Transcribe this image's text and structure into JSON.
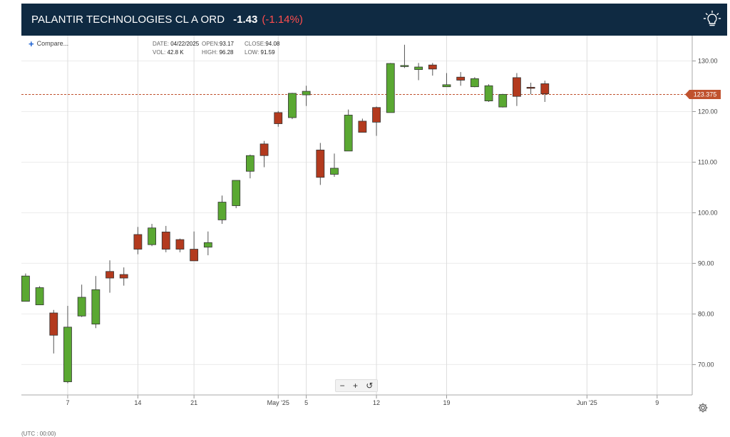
{
  "header": {
    "title": "PALANTIR TECHNOLOGIES CL A ORD",
    "change": "-1.43",
    "change_pct": "(-1.14%)"
  },
  "toolbar": {
    "compare_label": "Compare...",
    "zoom_out": "−",
    "zoom_in": "+",
    "reset": "↺"
  },
  "ohlc": {
    "date_label": "DATE:",
    "date": "04/22/2025",
    "vol_label": "VOL:",
    "vol": "42.8 K",
    "open_label": "OPEN:",
    "open": "93.17",
    "high_label": "HIGH:",
    "high": "96.28",
    "close_label": "CLOSE:",
    "close": "94.08",
    "low_label": "LOW:",
    "low": "91.59"
  },
  "footer": {
    "timezone": "(UTC : 00:00)"
  },
  "icons": {
    "lightbulb": "lightbulb-icon",
    "settings": "gear-icon"
  },
  "colors": {
    "up": "#5aa832",
    "down": "#b33a1e",
    "header_bg": "#0f2a42",
    "price_line": "#c0522e"
  },
  "chart_data": {
    "type": "candlestick",
    "ylim": [
      64,
      135
    ],
    "y_ticks": [
      70,
      80,
      90,
      100,
      110,
      120,
      130
    ],
    "y_tick_labels": [
      "70.00",
      "80.00",
      "90.00",
      "100.00",
      "110.00",
      "120.00",
      "130.00"
    ],
    "x_labels": [
      {
        "label": "7",
        "index": 3
      },
      {
        "label": "14",
        "index": 8
      },
      {
        "label": "21",
        "index": 12
      },
      {
        "label": "May '25",
        "index": 18
      },
      {
        "label": "5",
        "index": 20
      },
      {
        "label": "12",
        "index": 25
      },
      {
        "label": "19",
        "index": 30
      },
      {
        "label": "Jun '25",
        "index": 40
      },
      {
        "label": "9",
        "index": 45
      }
    ],
    "x_index_range": [
      -0.3,
      47.5
    ],
    "current_price": 123.375,
    "current_price_label": "123.375",
    "candles": [
      {
        "i": 0,
        "o": 82.5,
        "h": 88.0,
        "l": 82.5,
        "c": 87.5
      },
      {
        "i": 1,
        "o": 81.8,
        "h": 85.5,
        "l": 81.8,
        "c": 85.2
      },
      {
        "i": 2,
        "o": 80.2,
        "h": 80.8,
        "l": 72.2,
        "c": 75.8
      },
      {
        "i": 3,
        "o": 66.6,
        "h": 81.6,
        "l": 66.3,
        "c": 77.4
      },
      {
        "i": 4,
        "o": 79.6,
        "h": 85.8,
        "l": 79.4,
        "c": 83.3
      },
      {
        "i": 5,
        "o": 78.0,
        "h": 87.5,
        "l": 77.2,
        "c": 84.8
      },
      {
        "i": 6,
        "o": 88.4,
        "h": 90.6,
        "l": 84.2,
        "c": 87.1
      },
      {
        "i": 7,
        "o": 87.8,
        "h": 89.2,
        "l": 85.6,
        "c": 87.1
      },
      {
        "i": 8,
        "o": 95.7,
        "h": 97.2,
        "l": 91.8,
        "c": 92.8
      },
      {
        "i": 9,
        "o": 93.7,
        "h": 97.8,
        "l": 93.4,
        "c": 97.0
      },
      {
        "i": 10,
        "o": 96.2,
        "h": 97.4,
        "l": 92.2,
        "c": 92.8
      },
      {
        "i": 11,
        "o": 94.7,
        "h": 94.9,
        "l": 92.2,
        "c": 92.8
      },
      {
        "i": 12,
        "o": 92.8,
        "h": 96.3,
        "l": 90.5,
        "c": 90.5
      },
      {
        "i": 13,
        "o": 93.2,
        "h": 96.3,
        "l": 91.6,
        "c": 94.1
      },
      {
        "i": 14,
        "o": 98.6,
        "h": 103.4,
        "l": 97.8,
        "c": 102.1
      },
      {
        "i": 15,
        "o": 101.4,
        "h": 106.4,
        "l": 100.9,
        "c": 106.4
      },
      {
        "i": 16,
        "o": 108.2,
        "h": 111.5,
        "l": 106.8,
        "c": 111.3
      },
      {
        "i": 17,
        "o": 113.6,
        "h": 114.2,
        "l": 109.0,
        "c": 111.3
      },
      {
        "i": 18,
        "o": 119.8,
        "h": 120.1,
        "l": 117.0,
        "c": 117.6
      },
      {
        "i": 19,
        "o": 118.8,
        "h": 123.7,
        "l": 118.5,
        "c": 123.6
      },
      {
        "i": 20,
        "o": 123.3,
        "h": 125.1,
        "l": 121.1,
        "c": 124.0
      },
      {
        "i": 21,
        "o": 112.4,
        "h": 113.8,
        "l": 105.5,
        "c": 107.0
      },
      {
        "i": 22,
        "o": 107.6,
        "h": 111.7,
        "l": 107.1,
        "c": 108.8
      },
      {
        "i": 23,
        "o": 112.2,
        "h": 120.4,
        "l": 112.2,
        "c": 119.3
      },
      {
        "i": 24,
        "o": 118.1,
        "h": 118.6,
        "l": 115.9,
        "c": 115.9
      },
      {
        "i": 25,
        "o": 120.8,
        "h": 121.0,
        "l": 115.2,
        "c": 117.9
      },
      {
        "i": 26,
        "o": 119.8,
        "h": 129.6,
        "l": 119.8,
        "c": 129.5
      },
      {
        "i": 27,
        "o": 128.9,
        "h": 133.2,
        "l": 128.6,
        "c": 129.1
      },
      {
        "i": 28,
        "o": 128.3,
        "h": 129.6,
        "l": 126.2,
        "c": 128.8
      },
      {
        "i": 29,
        "o": 129.2,
        "h": 129.6,
        "l": 127.1,
        "c": 128.4
      },
      {
        "i": 30,
        "o": 124.9,
        "h": 127.6,
        "l": 124.9,
        "c": 125.3
      },
      {
        "i": 31,
        "o": 126.8,
        "h": 127.8,
        "l": 125.1,
        "c": 126.2
      },
      {
        "i": 32,
        "o": 124.9,
        "h": 126.8,
        "l": 124.8,
        "c": 126.5
      },
      {
        "i": 33,
        "o": 122.1,
        "h": 125.4,
        "l": 121.9,
        "c": 125.1
      },
      {
        "i": 34,
        "o": 120.9,
        "h": 123.5,
        "l": 120.8,
        "c": 123.4
      },
      {
        "i": 35,
        "o": 126.7,
        "h": 127.6,
        "l": 121.1,
        "c": 123.0
      },
      {
        "i": 36,
        "o": 124.8,
        "h": 125.7,
        "l": 123.4,
        "c": 124.6
      },
      {
        "i": 37,
        "o": 125.5,
        "h": 126.1,
        "l": 121.9,
        "c": 123.5
      }
    ]
  }
}
